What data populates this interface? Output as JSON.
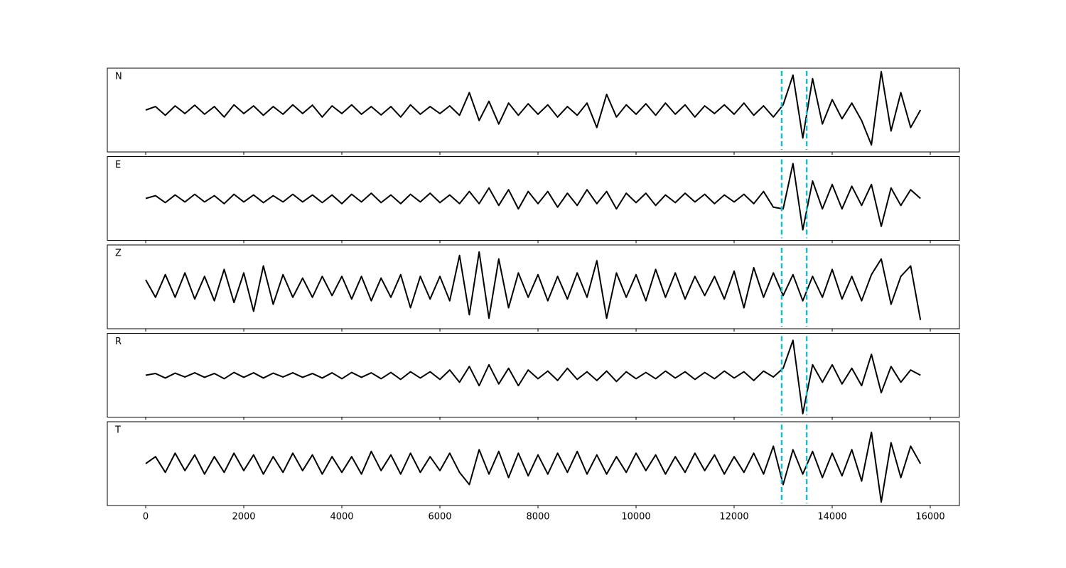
{
  "chart_data": {
    "type": "line",
    "x": [
      0,
      200,
      400,
      600,
      800,
      1000,
      1200,
      1400,
      1600,
      1800,
      2000,
      2200,
      2400,
      2600,
      2800,
      3000,
      3200,
      3400,
      3600,
      3800,
      4000,
      4200,
      4400,
      4600,
      4800,
      5000,
      5200,
      5400,
      5600,
      5800,
      6000,
      6200,
      6400,
      6600,
      6800,
      7000,
      7200,
      7400,
      7600,
      7800,
      8000,
      8200,
      8400,
      8600,
      8800,
      9000,
      9200,
      9400,
      9600,
      9800,
      10000,
      10200,
      10400,
      10600,
      10800,
      11000,
      11200,
      11400,
      11600,
      11800,
      12000,
      12200,
      12400,
      12600,
      12800,
      13000,
      13200,
      13400,
      13600,
      13800,
      14000,
      14200,
      14400,
      14600,
      14800,
      15000,
      15200,
      15400,
      15600,
      15800
    ],
    "series": [
      {
        "name": "N",
        "color": "#000000",
        "values": [
          0,
          0.1,
          -0.15,
          0.12,
          -0.1,
          0.14,
          -0.12,
          0.1,
          -0.2,
          0.15,
          -0.1,
          0.12,
          -0.15,
          0.1,
          -0.12,
          0.15,
          -0.1,
          0.14,
          -0.2,
          0.12,
          -0.1,
          0.15,
          -0.12,
          0.1,
          -0.14,
          0.1,
          -0.2,
          0.15,
          -0.12,
          0.1,
          -0.1,
          0.12,
          -0.15,
          0.5,
          -0.3,
          0.25,
          -0.4,
          0.2,
          -0.15,
          0.18,
          -0.12,
          0.15,
          -0.2,
          0.1,
          -0.15,
          0.2,
          -0.5,
          0.45,
          -0.2,
          0.15,
          -0.12,
          0.18,
          -0.15,
          0.2,
          -0.12,
          0.15,
          -0.2,
          0.12,
          -0.1,
          0.15,
          -0.12,
          0.2,
          -0.15,
          0.12,
          -0.2,
          0.15,
          1.0,
          -0.8,
          0.9,
          -0.4,
          0.3,
          -0.25,
          0.2,
          -0.3,
          -1.0,
          1.1,
          -0.6,
          0.5,
          -0.5,
          0.0
        ]
      },
      {
        "name": "E",
        "color": "#000000",
        "values": [
          0,
          0.08,
          -0.12,
          0.1,
          -0.1,
          0.12,
          -0.1,
          0.08,
          -0.15,
          0.12,
          -0.1,
          0.1,
          -0.12,
          0.08,
          -0.1,
          0.12,
          -0.1,
          0.1,
          -0.12,
          0.1,
          -0.15,
          0.12,
          -0.1,
          0.15,
          -0.12,
          0.1,
          -0.15,
          0.12,
          -0.1,
          0.15,
          -0.12,
          0.1,
          -0.15,
          0.2,
          -0.15,
          0.3,
          -0.2,
          0.25,
          -0.3,
          0.2,
          -0.15,
          0.2,
          -0.25,
          0.15,
          -0.2,
          0.25,
          -0.15,
          0.2,
          -0.3,
          0.15,
          -0.12,
          0.15,
          -0.2,
          0.1,
          -0.12,
          0.15,
          -0.1,
          0.12,
          -0.15,
          0.1,
          -0.1,
          0.12,
          -0.15,
          0.2,
          -0.25,
          -0.3,
          1.0,
          -0.9,
          0.5,
          -0.3,
          0.4,
          -0.3,
          0.35,
          -0.2,
          0.4,
          -0.8,
          0.3,
          -0.2,
          0.25,
          0.0
        ]
      },
      {
        "name": "Z",
        "color": "#000000",
        "values": [
          0.2,
          -0.3,
          0.35,
          -0.3,
          0.4,
          -0.35,
          0.3,
          -0.4,
          0.5,
          -0.45,
          0.4,
          -0.7,
          0.6,
          -0.5,
          0.35,
          -0.3,
          0.25,
          -0.3,
          0.3,
          -0.25,
          0.3,
          -0.35,
          0.3,
          -0.4,
          0.25,
          -0.3,
          0.35,
          -0.6,
          0.3,
          -0.35,
          0.3,
          -0.4,
          0.9,
          -0.8,
          1.0,
          -0.9,
          0.8,
          -0.6,
          0.4,
          -0.3,
          0.35,
          -0.4,
          0.3,
          -0.35,
          0.4,
          -0.3,
          0.75,
          -0.9,
          0.4,
          -0.3,
          0.35,
          -0.4,
          0.5,
          -0.3,
          0.4,
          -0.35,
          0.3,
          -0.25,
          0.3,
          -0.35,
          0.45,
          -0.6,
          0.55,
          -0.3,
          0.4,
          -0.25,
          0.35,
          -0.4,
          0.3,
          -0.3,
          0.5,
          -0.35,
          0.3,
          -0.4,
          0.35,
          0.8,
          -0.5,
          0.3,
          0.6,
          -0.95
        ]
      },
      {
        "name": "R",
        "color": "#000000",
        "values": [
          0,
          0.05,
          -0.08,
          0.06,
          -0.05,
          0.07,
          -0.06,
          0.05,
          -0.1,
          0.08,
          -0.06,
          0.07,
          -0.08,
          0.06,
          -0.05,
          0.07,
          -0.06,
          0.05,
          -0.08,
          0.07,
          -0.1,
          0.08,
          -0.06,
          0.07,
          -0.1,
          0.08,
          -0.12,
          0.1,
          -0.08,
          0.1,
          -0.12,
          0.15,
          -0.2,
          0.25,
          -0.3,
          0.3,
          -0.25,
          0.2,
          -0.3,
          0.15,
          -0.1,
          0.12,
          -0.15,
          0.2,
          -0.12,
          0.1,
          -0.15,
          0.12,
          -0.18,
          0.1,
          -0.1,
          0.08,
          -0.1,
          0.12,
          -0.08,
          0.1,
          -0.12,
          0.08,
          -0.1,
          0.12,
          -0.08,
          0.1,
          -0.15,
          0.12,
          -0.05,
          0.2,
          1.0,
          -1.1,
          0.3,
          -0.2,
          0.3,
          -0.25,
          0.2,
          -0.3,
          0.6,
          -0.5,
          0.25,
          -0.2,
          0.15,
          0.0
        ]
      },
      {
        "name": "T",
        "color": "#000000",
        "values": [
          0,
          0.2,
          -0.25,
          0.3,
          -0.2,
          0.25,
          -0.3,
          0.2,
          -0.25,
          0.3,
          -0.2,
          0.25,
          -0.3,
          0.2,
          -0.25,
          0.3,
          -0.2,
          0.25,
          -0.3,
          0.2,
          -0.25,
          0.2,
          -0.3,
          0.35,
          -0.2,
          0.25,
          -0.3,
          0.3,
          -0.25,
          0.2,
          -0.2,
          0.3,
          -0.25,
          -0.6,
          0.4,
          -0.3,
          0.35,
          -0.4,
          0.3,
          -0.35,
          0.25,
          -0.3,
          0.3,
          -0.25,
          0.35,
          -0.3,
          0.25,
          -0.3,
          0.2,
          -0.25,
          0.3,
          -0.2,
          0.25,
          -0.3,
          0.2,
          -0.25,
          0.3,
          -0.2,
          0.25,
          -0.3,
          0.2,
          -0.25,
          0.3,
          -0.3,
          0.5,
          -0.6,
          0.4,
          -0.3,
          0.35,
          -0.4,
          0.3,
          -0.35,
          0.4,
          -0.5,
          0.9,
          -1.1,
          0.6,
          -0.4,
          0.5,
          0.0
        ]
      }
    ],
    "vlines": [
      12970,
      13480
    ],
    "vline_color": "#17becf",
    "xlim": [
      -783,
      16594
    ],
    "xticks": [
      0,
      2000,
      4000,
      6000,
      8000,
      10000,
      12000,
      14000,
      16000
    ],
    "ylim": [
      -1.2,
      1.2
    ]
  }
}
